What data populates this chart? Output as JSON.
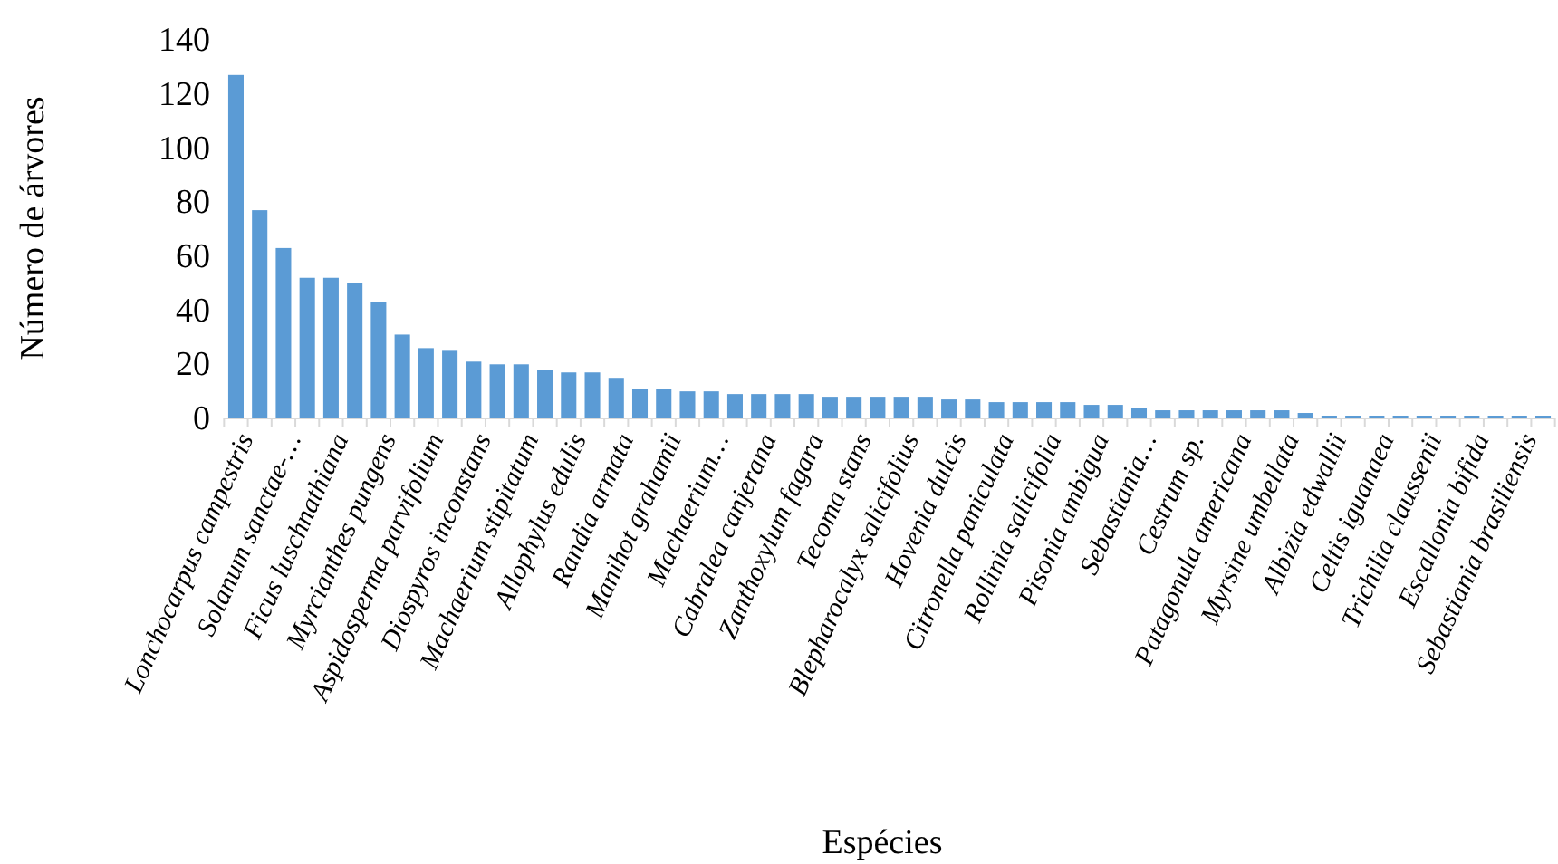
{
  "chart_data": {
    "type": "bar",
    "xlabel": "Espécies",
    "ylabel": "Número de árvores",
    "categories": [
      "Lonchocarpus campestris",
      null,
      "Solanum sanctae-…",
      null,
      "Ficus luschnathiana",
      null,
      "Myrcianthes pungens",
      null,
      "Aspidosperma parvifolium",
      null,
      "Diospyros inconstans",
      null,
      "Machaerium stipitatum",
      null,
      "Allophylus edulis",
      null,
      "Randia armata",
      null,
      "Manihot grahamii",
      null,
      "Machaerium…",
      null,
      "Cabralea canjerana",
      null,
      "Zanthoxylum fagara",
      null,
      "Tecoma stans",
      null,
      "Blepharocalyx salicifolius",
      null,
      "Hovenia dulcis",
      null,
      "Citronella paniculata",
      null,
      "Rollinia salicifolia",
      null,
      "Pisonia ambigua",
      null,
      "Sebastiania…",
      null,
      "Cestrum sp.",
      null,
      "Patagonula americana",
      null,
      "Myrsine umbellata",
      null,
      "Albizia edwallii",
      null,
      "Celtis iguanaea",
      null,
      "Trichilia claussenii",
      null,
      "Escallonia bifida",
      null,
      "Sebastiania brasiliensis",
      null
    ],
    "values": [
      127,
      77,
      63,
      52,
      52,
      50,
      43,
      31,
      26,
      25,
      21,
      20,
      20,
      18,
      17,
      17,
      15,
      11,
      11,
      10,
      10,
      9,
      9,
      9,
      9,
      8,
      8,
      8,
      8,
      8,
      7,
      7,
      6,
      6,
      6,
      6,
      5,
      5,
      4,
      3,
      3,
      3,
      3,
      3,
      3,
      2,
      1,
      1,
      1,
      1,
      1,
      1,
      1,
      1,
      1,
      1
    ],
    "color": "#5b9bd5",
    "ylim": [
      0,
      140
    ],
    "yticks": [
      0,
      20,
      40,
      60,
      80,
      100,
      120,
      140
    ],
    "grid": false
  }
}
